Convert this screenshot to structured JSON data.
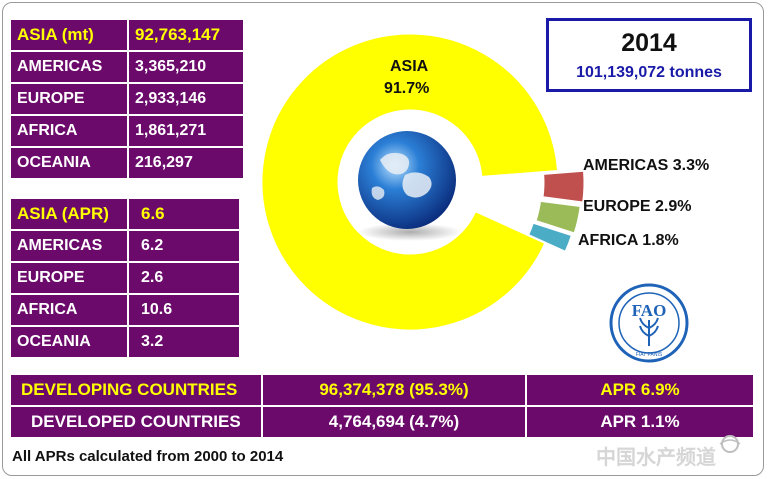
{
  "year_box": {
    "year": "2014",
    "total": "101,139,072 tonnes"
  },
  "production_table": {
    "header": {
      "region": "ASIA (mt)",
      "value": "92,763,147"
    },
    "rows": [
      {
        "region": "AMERICAS",
        "value": "3,365,210"
      },
      {
        "region": "EUROPE",
        "value": "2,933,146"
      },
      {
        "region": "AFRICA",
        "value": "1,861,271"
      },
      {
        "region": "OCEANIA",
        "value": "216,297"
      }
    ]
  },
  "apr_table": {
    "header": {
      "region": "ASIA (APR)",
      "value": "6.6"
    },
    "rows": [
      {
        "region": "AMERICAS",
        "value": "6.2"
      },
      {
        "region": "EUROPE",
        "value": "2.6"
      },
      {
        "region": "AFRICA",
        "value": "10.6"
      },
      {
        "region": "OCEANIA",
        "value": "3.2"
      }
    ]
  },
  "development_table": {
    "developing": {
      "label": "DEVELOPING  COUNTRIES",
      "value": "96,374,378 (95.3%)",
      "apr": "APR 6.9%"
    },
    "developed": {
      "label": "DEVELOPED COUNTRIES",
      "value": "4,764,694  (4.7%)",
      "apr": "APR 1.1%"
    }
  },
  "footnote": "All APRs calculated from 2000 to 2014",
  "logo": {
    "text": "FAO",
    "motto": "FIAT PANIS",
    "icon": "fao-logo-icon"
  },
  "watermark": {
    "text": "中国水产频道",
    "icon": "watermark-logo-icon"
  },
  "center_icon": "globe-icon",
  "chart_data": {
    "type": "pie",
    "style": "donut",
    "slices": [
      {
        "label": "ASIA",
        "value": 91.7,
        "display": "91.7%",
        "color": "#ffff00"
      },
      {
        "label": "AMERICAS",
        "value": 3.3,
        "display": "AMERICAS 3.3%",
        "color": "#c0504d"
      },
      {
        "label": "EUROPE",
        "value": 2.9,
        "display": "EUROPE 2.9%",
        "color": "#9bbb59"
      },
      {
        "label": "AFRICA",
        "value": 1.8,
        "display": "AFRICA 1.8%",
        "color": "#4bacc6"
      }
    ],
    "legend": "none"
  }
}
